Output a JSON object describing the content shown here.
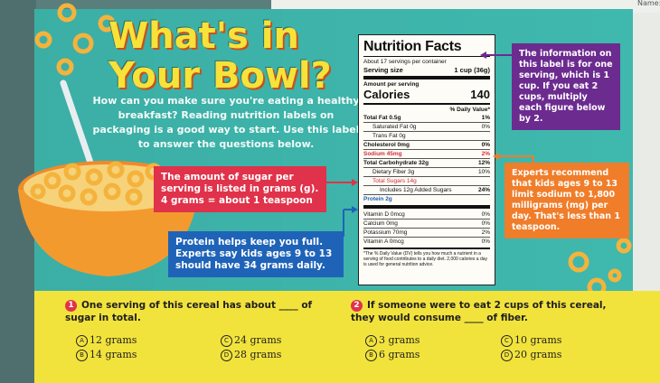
{
  "header": {
    "name_label": "Name:"
  },
  "card": {
    "title_line1": "What's in",
    "title_line2": "Your Bowl?",
    "intro": "How can you make sure you're eating a healthy breakfast? Reading nutrition labels on packaging is a good way to start. Use this label to answer the questions below."
  },
  "callouts": {
    "sugar": "The amount of sugar per serving is listed in grams (g). 4 grams = about 1 teaspoon",
    "protein": "Protein helps keep you full. Experts say kids ages 9 to 13 should have 34 grams daily.",
    "serving_info": "The information on this label is for one serving, which is 1 cup. If you eat 2 cups, multiply each figure below by 2.",
    "sodium": "Experts recommend that kids ages 9 to 13 limit sodium to 1,800 milligrams (mg) per day. That's less than 1 teaspoon."
  },
  "nutrition": {
    "title": "Nutrition Facts",
    "servings_per_container": "About 17 servings per container",
    "serving_size_label": "Serving size",
    "serving_size_value": "1 cup (36g)",
    "amount_per_serving": "Amount per serving",
    "calories_label": "Calories",
    "calories_value": "140",
    "daily_value_header": "% Daily Value*",
    "rows": [
      {
        "label": "Total Fat 0.5g",
        "dv": "1%"
      },
      {
        "label": "Saturated Fat 0g",
        "dv": "0%"
      },
      {
        "label": "Trans Fat 0g",
        "dv": ""
      },
      {
        "label": "Cholesterol 0mg",
        "dv": "0%"
      },
      {
        "label": "Sodium 45mg",
        "dv": "2%"
      },
      {
        "label": "Total Carbohydrate 32g",
        "dv": "12%"
      },
      {
        "label": "Dietary Fiber 3g",
        "dv": "10%"
      },
      {
        "label": "Total Sugars 14g",
        "dv": ""
      },
      {
        "label": "Includes 12g Added Sugars",
        "dv": "24%"
      },
      {
        "label": "Protein 2g",
        "dv": ""
      }
    ],
    "vitamins": [
      {
        "label": "Vitamin D 0mcg",
        "dv": "0%"
      },
      {
        "label": "Calcium 0mg",
        "dv": "0%"
      },
      {
        "label": "Potassium 70mg",
        "dv": "2%"
      },
      {
        "label": "Vitamin A 0mcg",
        "dv": "0%"
      }
    ],
    "footnote": "*The % Daily Value (DV) tells you how much a nutrient in a serving of food contributes to a daily diet. 2,000 calories a day is used for general nutrition advice."
  },
  "questions": [
    {
      "number": "1",
      "text": "One serving of this cereal has about ____ of sugar in total.",
      "options": [
        {
          "letter": "A",
          "text": "12 grams"
        },
        {
          "letter": "B",
          "text": "14 grams"
        },
        {
          "letter": "C",
          "text": "24 grams"
        },
        {
          "letter": "D",
          "text": "28 grams"
        }
      ]
    },
    {
      "number": "2",
      "text": "If someone were to eat 2 cups of this cereal, they would consume ____ of fiber.",
      "options": [
        {
          "letter": "A",
          "text": "3 grams"
        },
        {
          "letter": "B",
          "text": "6 grams"
        },
        {
          "letter": "C",
          "text": "10 grams"
        },
        {
          "letter": "D",
          "text": "20 grams"
        }
      ]
    }
  ],
  "colors": {
    "card_teal": "#3fb8ae",
    "title_yellow": "#f7e23a",
    "sugar_red": "#e0324a",
    "protein_blue": "#1f63b8",
    "serving_purple": "#6c2b8f",
    "sodium_orange": "#f07d2a",
    "answer_yellow": "#f2e33c"
  }
}
